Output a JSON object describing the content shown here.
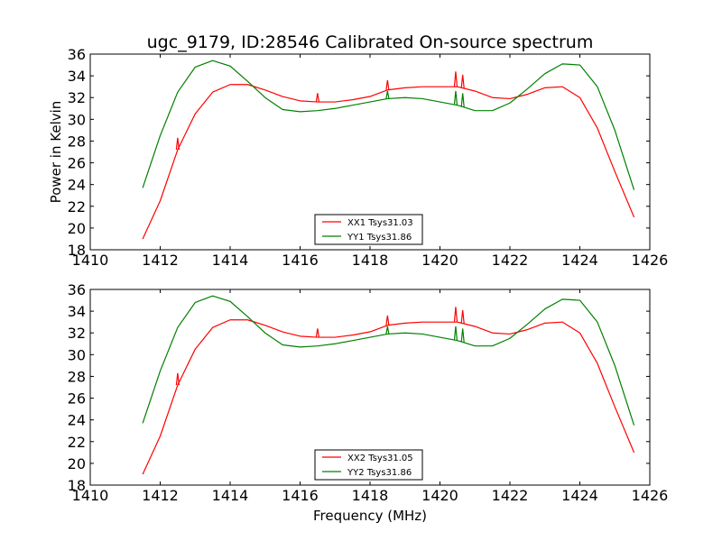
{
  "title": "ugc_9179, ID:28546 Calibrated On-source spectrum",
  "colors": {
    "xx": "#ff0000",
    "yy": "#008000"
  },
  "chart_data": [
    {
      "type": "line",
      "xlabel": "",
      "ylabel": "Power in Kelvin",
      "xlim": [
        1410,
        1426
      ],
      "ylim": [
        18,
        36
      ],
      "xticks": [
        1410,
        1412,
        1414,
        1416,
        1418,
        1420,
        1422,
        1424,
        1426
      ],
      "yticks": [
        18,
        20,
        22,
        24,
        26,
        28,
        30,
        32,
        34,
        36
      ],
      "legend_position": "lower-center",
      "series": [
        {
          "name": "XX1 Tsys31.03",
          "color": "#ff0000",
          "x": [
            1411.5,
            1412.0,
            1412.5,
            1413.0,
            1413.5,
            1414.0,
            1414.5,
            1415.0,
            1415.5,
            1416.0,
            1416.5,
            1417.0,
            1417.5,
            1418.0,
            1418.5,
            1419.0,
            1419.5,
            1420.0,
            1420.5,
            1421.0,
            1421.5,
            1422.0,
            1422.5,
            1423.0,
            1423.5,
            1424.0,
            1424.5,
            1425.0,
            1425.55
          ],
          "y": [
            19.0,
            22.5,
            27.2,
            30.5,
            32.5,
            33.2,
            33.2,
            32.7,
            32.1,
            31.7,
            31.6,
            31.6,
            31.8,
            32.1,
            32.7,
            32.9,
            33.0,
            33.0,
            33.0,
            32.6,
            32.0,
            31.9,
            32.3,
            32.9,
            33.0,
            32.0,
            29.2,
            25.2,
            21.0
          ],
          "spikes": [
            {
              "x": 1412.5,
              "y": 28.3
            },
            {
              "x": 1416.5,
              "y": 32.4
            },
            {
              "x": 1418.5,
              "y": 33.6
            },
            {
              "x": 1420.45,
              "y": 34.4
            },
            {
              "x": 1420.65,
              "y": 34.1
            }
          ]
        },
        {
          "name": "YY1 Tsys31.86",
          "color": "#008000",
          "x": [
            1411.5,
            1412.0,
            1412.5,
            1413.0,
            1413.5,
            1414.0,
            1414.5,
            1415.0,
            1415.5,
            1416.0,
            1416.5,
            1417.0,
            1417.5,
            1418.0,
            1418.5,
            1419.0,
            1419.5,
            1420.0,
            1420.5,
            1421.0,
            1421.5,
            1422.0,
            1422.5,
            1423.0,
            1423.5,
            1424.0,
            1424.5,
            1425.0,
            1425.55
          ],
          "y": [
            23.7,
            28.5,
            32.5,
            34.8,
            35.4,
            34.9,
            33.5,
            32.0,
            30.9,
            30.7,
            30.8,
            31.0,
            31.3,
            31.6,
            31.9,
            32.0,
            31.9,
            31.6,
            31.3,
            30.8,
            30.8,
            31.5,
            32.8,
            34.2,
            35.1,
            35.0,
            33.0,
            29.0,
            23.5
          ],
          "spikes": [
            {
              "x": 1418.5,
              "y": 32.6
            },
            {
              "x": 1420.45,
              "y": 32.6
            },
            {
              "x": 1420.65,
              "y": 32.4
            }
          ]
        }
      ]
    },
    {
      "type": "line",
      "xlabel": "Frequency (MHz)",
      "ylabel": "",
      "xlim": [
        1410,
        1426
      ],
      "ylim": [
        18,
        36
      ],
      "xticks": [
        1410,
        1412,
        1414,
        1416,
        1418,
        1420,
        1422,
        1424,
        1426
      ],
      "yticks": [
        18,
        20,
        22,
        24,
        26,
        28,
        30,
        32,
        34,
        36
      ],
      "legend_position": "lower-center",
      "series": [
        {
          "name": "XX2 Tsys31.05",
          "color": "#ff0000",
          "x": [
            1411.5,
            1412.0,
            1412.5,
            1413.0,
            1413.5,
            1414.0,
            1414.5,
            1415.0,
            1415.5,
            1416.0,
            1416.5,
            1417.0,
            1417.5,
            1418.0,
            1418.5,
            1419.0,
            1419.5,
            1420.0,
            1420.5,
            1421.0,
            1421.5,
            1422.0,
            1422.5,
            1423.0,
            1423.5,
            1424.0,
            1424.5,
            1425.0,
            1425.55
          ],
          "y": [
            19.0,
            22.5,
            27.2,
            30.5,
            32.5,
            33.2,
            33.2,
            32.7,
            32.1,
            31.7,
            31.6,
            31.6,
            31.8,
            32.1,
            32.7,
            32.9,
            33.0,
            33.0,
            33.0,
            32.6,
            32.0,
            31.9,
            32.3,
            32.9,
            33.0,
            32.0,
            29.2,
            25.2,
            21.0
          ],
          "spikes": [
            {
              "x": 1412.5,
              "y": 28.3
            },
            {
              "x": 1416.5,
              "y": 32.4
            },
            {
              "x": 1418.5,
              "y": 33.6
            },
            {
              "x": 1420.45,
              "y": 34.4
            },
            {
              "x": 1420.65,
              "y": 34.1
            }
          ]
        },
        {
          "name": "YY2 Tsys31.86",
          "color": "#008000",
          "x": [
            1411.5,
            1412.0,
            1412.5,
            1413.0,
            1413.5,
            1414.0,
            1414.5,
            1415.0,
            1415.5,
            1416.0,
            1416.5,
            1417.0,
            1417.5,
            1418.0,
            1418.5,
            1419.0,
            1419.5,
            1420.0,
            1420.5,
            1421.0,
            1421.5,
            1422.0,
            1422.5,
            1423.0,
            1423.5,
            1424.0,
            1424.5,
            1425.0,
            1425.55
          ],
          "y": [
            23.7,
            28.5,
            32.5,
            34.8,
            35.4,
            34.9,
            33.5,
            32.0,
            30.9,
            30.7,
            30.8,
            31.0,
            31.3,
            31.6,
            31.9,
            32.0,
            31.9,
            31.6,
            31.3,
            30.8,
            30.8,
            31.5,
            32.8,
            34.2,
            35.1,
            35.0,
            33.0,
            29.0,
            23.5
          ],
          "spikes": [
            {
              "x": 1418.5,
              "y": 32.6
            },
            {
              "x": 1420.45,
              "y": 32.6
            },
            {
              "x": 1420.65,
              "y": 32.4
            }
          ]
        }
      ]
    }
  ]
}
